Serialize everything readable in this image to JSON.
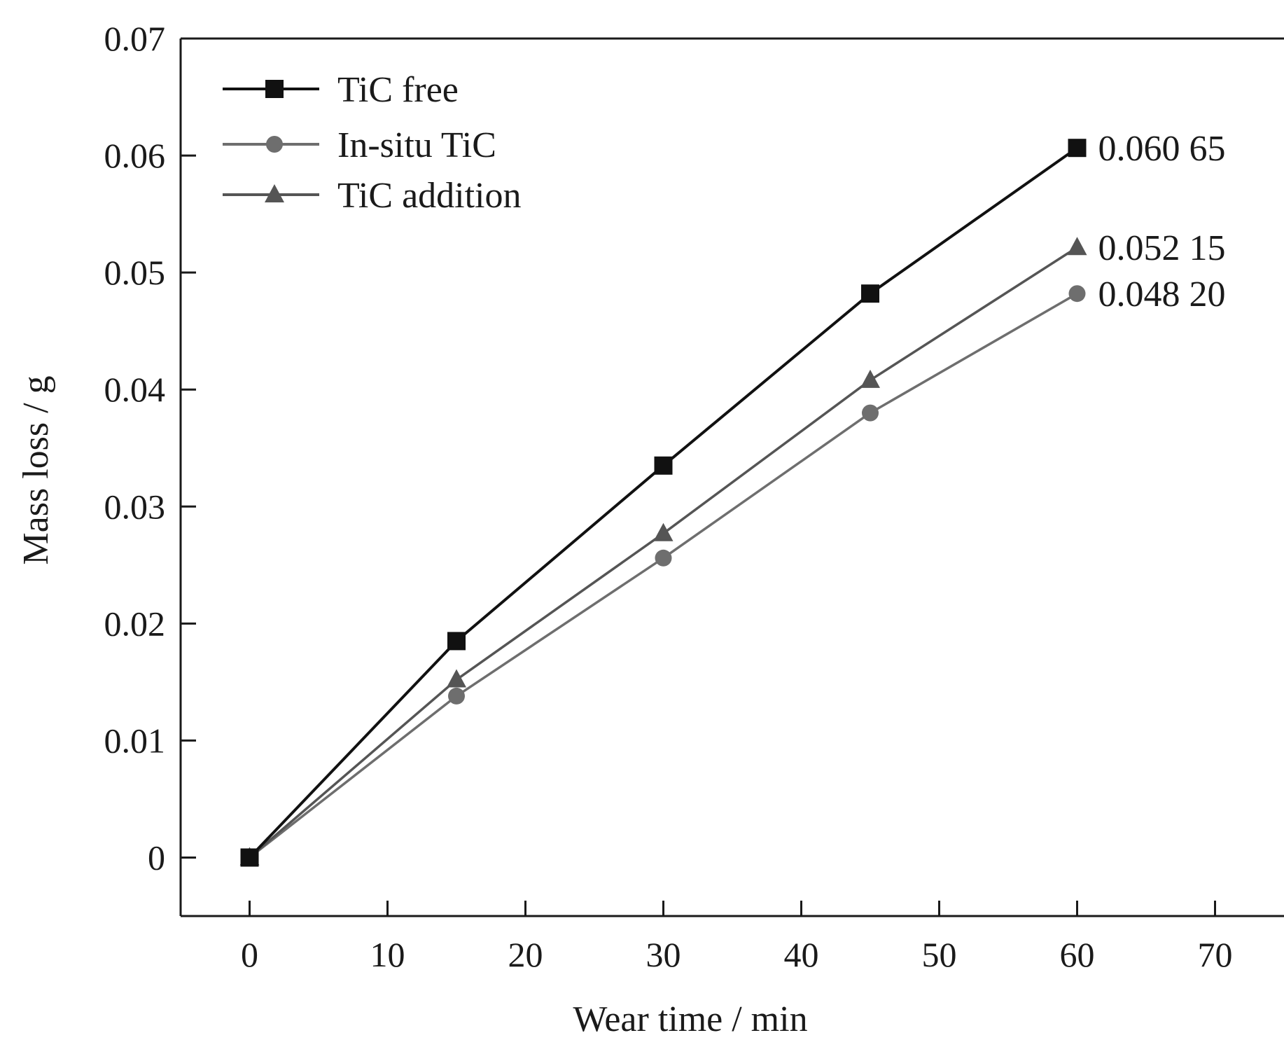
{
  "chart_data": {
    "type": "line",
    "xlabel": "Wear time / min",
    "ylabel": "Mass loss / g",
    "xlim": [
      -5,
      75
    ],
    "ylim": [
      -0.005,
      0.07
    ],
    "x_ticks": [
      0,
      10,
      20,
      30,
      40,
      50,
      60,
      70
    ],
    "y_ticks": [
      0,
      0.01,
      0.02,
      0.03,
      0.04,
      0.05,
      0.06,
      0.07
    ],
    "x_tick_labels": [
      "0",
      "10",
      "20",
      "30",
      "40",
      "50",
      "60",
      "70"
    ],
    "y_tick_labels": [
      "0",
      "0.01",
      "0.02",
      "0.03",
      "0.04",
      "0.05",
      "0.06",
      "0.07"
    ],
    "grid": false,
    "legend_position": "top-left",
    "x": [
      0,
      15,
      30,
      45,
      60
    ],
    "series": [
      {
        "name": "TiC free",
        "marker": "square",
        "color": "#111111",
        "values": [
          0,
          0.0185,
          0.0335,
          0.0482,
          0.06065
        ],
        "end_label": "0.060 65"
      },
      {
        "name": "In-situ TiC",
        "marker": "circle",
        "color": "#6e6e6e",
        "values": [
          0,
          0.0138,
          0.0256,
          0.038,
          0.0482
        ],
        "end_label": "0.048 20"
      },
      {
        "name": "TiC addition",
        "marker": "triangle",
        "color": "#555555",
        "values": [
          0,
          0.0152,
          0.0277,
          0.0408,
          0.05215
        ],
        "end_label": "0.052 15"
      }
    ]
  }
}
